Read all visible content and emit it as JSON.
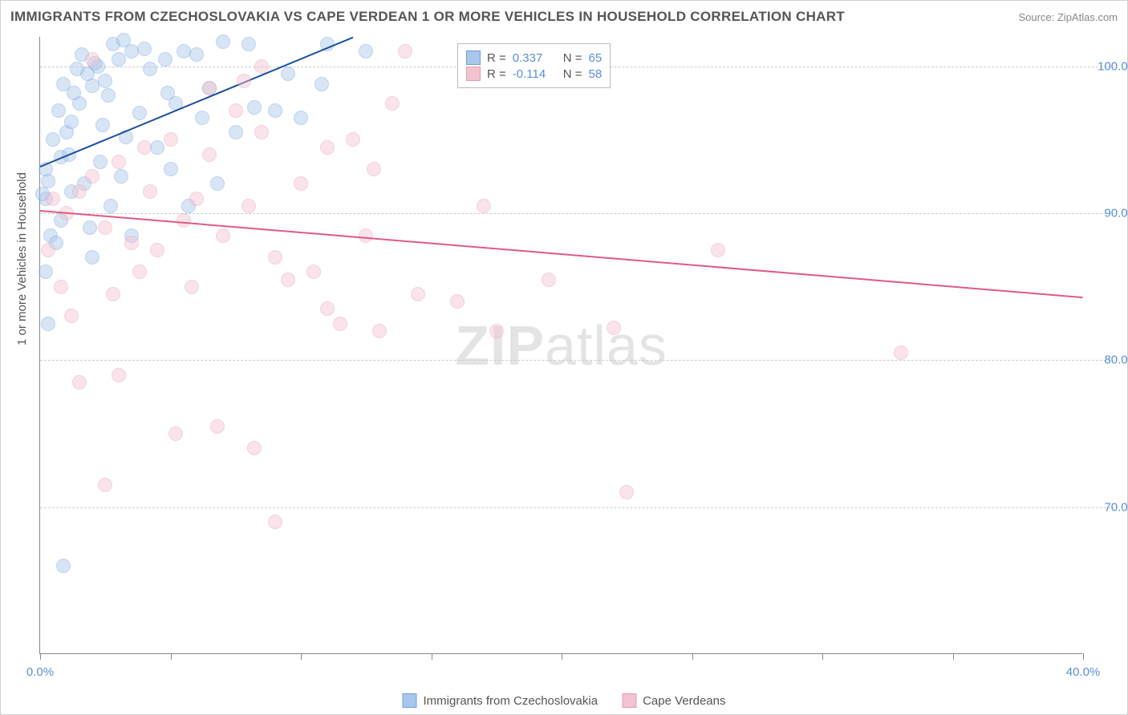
{
  "title": "IMMIGRANTS FROM CZECHOSLOVAKIA VS CAPE VERDEAN 1 OR MORE VEHICLES IN HOUSEHOLD CORRELATION CHART",
  "source": "Source: ZipAtlas.com",
  "y_axis_title": "1 or more Vehicles in Household",
  "watermark_a": "ZIP",
  "watermark_b": "atlas",
  "chart": {
    "type": "scatter",
    "background_color": "#ffffff",
    "grid_color": "#cccccc",
    "axis_color": "#888888",
    "xlim": [
      0,
      40
    ],
    "ylim": [
      60,
      102
    ],
    "x_ticks": [
      0,
      5,
      10,
      15,
      20,
      25,
      30,
      35,
      40
    ],
    "x_tick_labels": {
      "0": "0.0%",
      "40": "40.0%"
    },
    "y_gridlines": [
      70,
      80,
      90,
      100
    ],
    "y_tick_labels": {
      "70": "70.0%",
      "80": "80.0%",
      "90": "90.0%",
      "100": "100.0%"
    },
    "label_color": "#5a8fd6",
    "label_fontsize": 15,
    "title_color": "#555555",
    "title_fontsize": 17,
    "marker_radius": 9,
    "marker_opacity": 0.45,
    "series": [
      {
        "name": "Immigrants from Czechoslovakia",
        "color": "#6fa0de",
        "fill": "#a9c6eb",
        "R": "0.337",
        "N": "65",
        "trend": {
          "x1": 0,
          "y1": 93.2,
          "x2": 12,
          "y2": 102,
          "color": "#1a4fa0",
          "width": 2
        },
        "points": [
          [
            0.2,
            91.0
          ],
          [
            0.1,
            91.3
          ],
          [
            0.3,
            92.2
          ],
          [
            0.2,
            93.0
          ],
          [
            0.8,
            93.8
          ],
          [
            0.5,
            95.0
          ],
          [
            1.0,
            95.5
          ],
          [
            1.2,
            96.2
          ],
          [
            0.7,
            97.0
          ],
          [
            1.5,
            97.5
          ],
          [
            1.3,
            98.2
          ],
          [
            2.0,
            98.7
          ],
          [
            2.5,
            99.0
          ],
          [
            1.8,
            99.5
          ],
          [
            2.2,
            100.0
          ],
          [
            3.0,
            100.5
          ],
          [
            3.5,
            101.0
          ],
          [
            4.0,
            101.2
          ],
          [
            2.8,
            101.5
          ],
          [
            3.2,
            101.8
          ],
          [
            1.6,
            100.8
          ],
          [
            2.1,
            100.2
          ],
          [
            1.4,
            99.8
          ],
          [
            0.9,
            98.8
          ],
          [
            2.6,
            98.0
          ],
          [
            4.2,
            99.8
          ],
          [
            4.8,
            100.5
          ],
          [
            5.2,
            97.5
          ],
          [
            5.5,
            101.0
          ],
          [
            6.0,
            100.8
          ],
          [
            6.5,
            98.5
          ],
          [
            7.0,
            101.7
          ],
          [
            7.5,
            95.5
          ],
          [
            8.0,
            101.5
          ],
          [
            8.2,
            97.2
          ],
          [
            9.0,
            97.0
          ],
          [
            9.5,
            99.5
          ],
          [
            4.5,
            94.5
          ],
          [
            5.0,
            93.0
          ],
          [
            3.8,
            96.8
          ],
          [
            2.4,
            96.0
          ],
          [
            1.1,
            94.0
          ],
          [
            6.2,
            96.5
          ],
          [
            4.9,
            98.2
          ],
          [
            3.3,
            95.2
          ],
          [
            0.4,
            88.5
          ],
          [
            0.6,
            88.0
          ],
          [
            2.0,
            87.0
          ],
          [
            3.5,
            88.5
          ],
          [
            0.2,
            86.0
          ],
          [
            0.3,
            82.5
          ],
          [
            1.2,
            91.5
          ],
          [
            0.8,
            89.5
          ],
          [
            1.7,
            92.0
          ],
          [
            2.3,
            93.5
          ],
          [
            12.5,
            101.0
          ],
          [
            10.8,
            98.8
          ],
          [
            6.8,
            92.0
          ],
          [
            5.7,
            90.5
          ],
          [
            0.9,
            66.0
          ],
          [
            10.0,
            96.5
          ],
          [
            11.0,
            101.5
          ],
          [
            1.9,
            89.0
          ],
          [
            2.7,
            90.5
          ],
          [
            3.1,
            92.5
          ]
        ]
      },
      {
        "name": "Cape Verdeans",
        "color": "#e89ab0",
        "fill": "#f4c3d1",
        "R": "-0.114",
        "N": "58",
        "trend": {
          "x1": 0,
          "y1": 90.2,
          "x2": 40,
          "y2": 84.3,
          "color": "#e05a82",
          "width": 2
        },
        "points": [
          [
            0.5,
            91.0
          ],
          [
            1.0,
            90.0
          ],
          [
            1.5,
            91.5
          ],
          [
            2.0,
            92.5
          ],
          [
            2.5,
            89.0
          ],
          [
            3.0,
            93.5
          ],
          [
            3.5,
            88.0
          ],
          [
            4.0,
            94.5
          ],
          [
            4.5,
            87.5
          ],
          [
            5.0,
            95.0
          ],
          [
            5.5,
            89.5
          ],
          [
            6.0,
            91.0
          ],
          [
            6.5,
            94.0
          ],
          [
            7.0,
            88.5
          ],
          [
            7.5,
            97.0
          ],
          [
            8.0,
            90.5
          ],
          [
            8.5,
            95.5
          ],
          [
            9.0,
            87.0
          ],
          [
            9.5,
            85.5
          ],
          [
            10.0,
            92.0
          ],
          [
            10.5,
            86.0
          ],
          [
            11.0,
            94.5
          ],
          [
            11.5,
            82.5
          ],
          [
            12.0,
            95.0
          ],
          [
            13.0,
            82.0
          ],
          [
            13.5,
            97.5
          ],
          [
            14.0,
            101.0
          ],
          [
            7.8,
            99.0
          ],
          [
            2.0,
            100.5
          ],
          [
            8.5,
            100.0
          ],
          [
            12.5,
            88.5
          ],
          [
            5.2,
            75.0
          ],
          [
            6.8,
            75.5
          ],
          [
            8.2,
            74.0
          ],
          [
            9.0,
            69.0
          ],
          [
            2.5,
            71.5
          ],
          [
            1.5,
            78.5
          ],
          [
            3.0,
            79.0
          ],
          [
            0.8,
            85.0
          ],
          [
            1.2,
            83.0
          ],
          [
            16.0,
            84.0
          ],
          [
            17.0,
            90.5
          ],
          [
            17.5,
            82.0
          ],
          [
            19.5,
            85.5
          ],
          [
            22.0,
            82.2
          ],
          [
            22.5,
            71.0
          ],
          [
            26.0,
            87.5
          ],
          [
            33.0,
            80.5
          ],
          [
            11.0,
            83.5
          ],
          [
            0.3,
            87.5
          ],
          [
            4.2,
            91.5
          ],
          [
            6.5,
            98.5
          ],
          [
            3.8,
            86.0
          ],
          [
            2.8,
            84.5
          ],
          [
            14.5,
            84.5
          ],
          [
            12.8,
            93.0
          ],
          [
            18.5,
            101.0
          ],
          [
            5.8,
            85.0
          ]
        ]
      }
    ]
  },
  "legend": {
    "R_label": "R =",
    "N_label": "N ="
  }
}
